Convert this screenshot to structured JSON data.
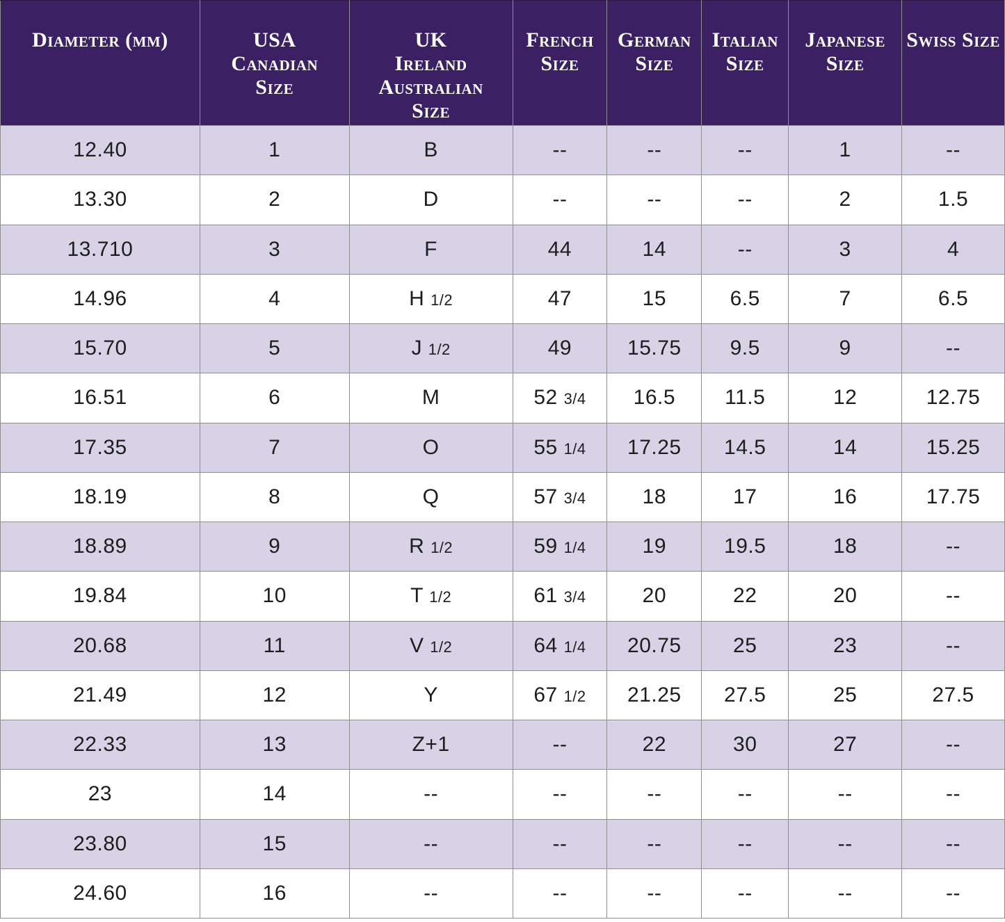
{
  "chart_data": {
    "type": "table",
    "columns": [
      {
        "id": "diameter",
        "label": "Diameter (mm)"
      },
      {
        "id": "usa-canadian",
        "label": "USA\nCanadian\nSize"
      },
      {
        "id": "uk-ireland-australian",
        "label": "UK\nIreland\nAustralian\nSize"
      },
      {
        "id": "french",
        "label": "French\nSize"
      },
      {
        "id": "german",
        "label": "German\nSize"
      },
      {
        "id": "italian",
        "label": "Italian\nSize"
      },
      {
        "id": "japanese",
        "label": "Japanese Size"
      },
      {
        "id": "swiss",
        "label": "Swiss Size"
      }
    ],
    "rows": [
      [
        "12.40",
        "1",
        "B",
        "--",
        "--",
        "--",
        "1",
        "--"
      ],
      [
        "13.30",
        "2",
        "D",
        "--",
        "--",
        "--",
        "2",
        "1.5"
      ],
      [
        "13.710",
        "3",
        "F",
        "44",
        "14",
        "--",
        "3",
        "4"
      ],
      [
        "14.96",
        "4",
        "H 1/2",
        "47",
        "15",
        "6.5",
        "7",
        "6.5"
      ],
      [
        "15.70",
        "5",
        "J 1/2",
        "49",
        "15.75",
        "9.5",
        "9",
        "--"
      ],
      [
        "16.51",
        "6",
        "M",
        "52 3/4",
        "16.5",
        "11.5",
        "12",
        "12.75"
      ],
      [
        "17.35",
        "7",
        "O",
        "55 1/4",
        "17.25",
        "14.5",
        "14",
        "15.25"
      ],
      [
        "18.19",
        "8",
        "Q",
        "57 3/4",
        "18",
        "17",
        "16",
        "17.75"
      ],
      [
        "18.89",
        "9",
        "R 1/2",
        "59 1/4",
        "19",
        "19.5",
        "18",
        "--"
      ],
      [
        "19.84",
        "10",
        "T 1/2",
        "61 3/4",
        "20",
        "22",
        "20",
        "--"
      ],
      [
        "20.68",
        "11",
        "V 1/2",
        "64 1/4",
        "20.75",
        "25",
        "23",
        "--"
      ],
      [
        "21.49",
        "12",
        "Y",
        "67 1/2",
        "21.25",
        "27.5",
        "25",
        "27.5"
      ],
      [
        "22.33",
        "13",
        "Z+1",
        "--",
        "22",
        "30",
        "27",
        "--"
      ],
      [
        "23",
        "14",
        "--",
        "--",
        "--",
        "--",
        "--",
        "--"
      ],
      [
        "23.80",
        "15",
        "--",
        "--",
        "--",
        "--",
        "--",
        "--"
      ],
      [
        "24.60",
        "16",
        "--",
        "--",
        "--",
        "--",
        "--",
        "--"
      ]
    ],
    "layout": {
      "striped_rows": true,
      "header_position": "top",
      "grid": true
    }
  },
  "colors": {
    "header_bg": "#3b2163",
    "header_text": "#ffffff",
    "row_bg": "#ffffff",
    "row_alt_bg": "#d8d2e7",
    "border": "#8f8f8f",
    "body_text": "#1d1d1d"
  }
}
